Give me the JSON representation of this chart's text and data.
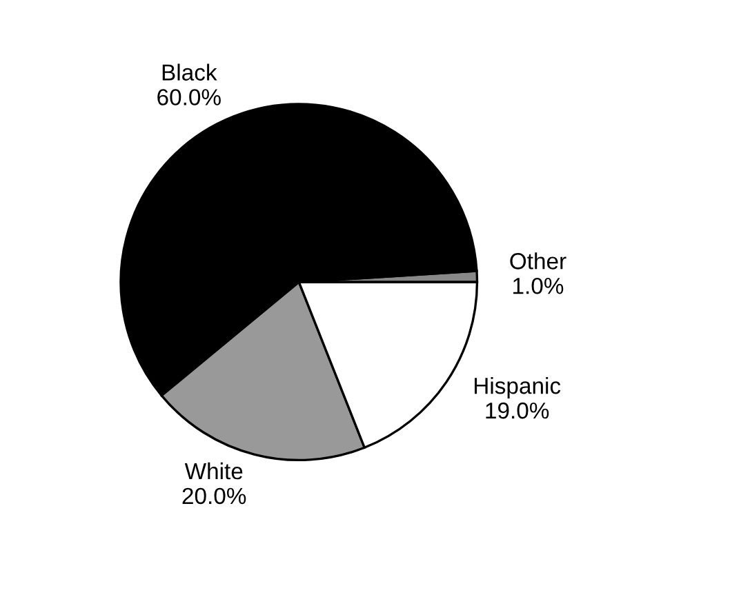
{
  "chart_data": {
    "type": "pie",
    "categories": [
      "Other",
      "Black",
      "White",
      "Hispanic"
    ],
    "values": [
      1.0,
      60.0,
      20.0,
      19.0
    ],
    "value_labels": [
      "1.0%",
      "60.0%",
      "20.0%",
      "19.0%"
    ],
    "colors": [
      "#888888",
      "#000000",
      "#999999",
      "#ffffff"
    ]
  }
}
